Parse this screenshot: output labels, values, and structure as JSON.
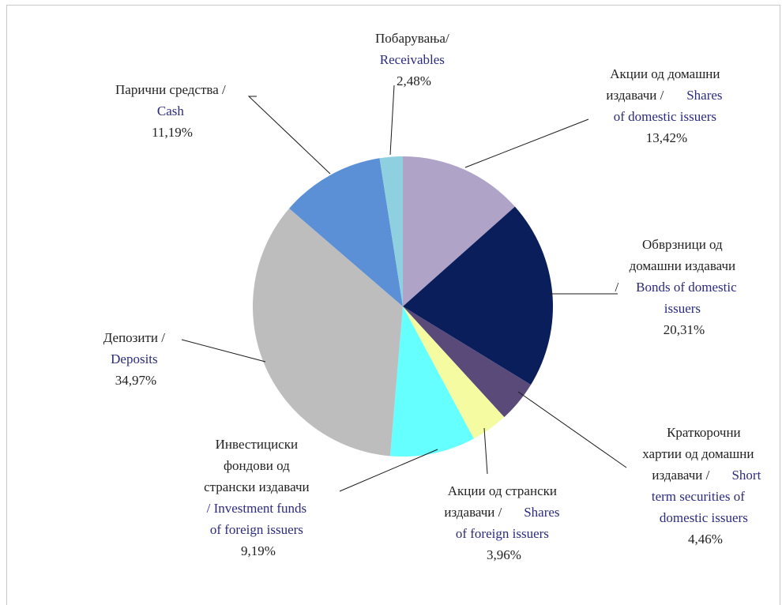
{
  "chart_data": {
    "type": "pie",
    "slices": [
      {
        "id": "domestic-shares",
        "cyr": [
          "Акции од домашни",
          "издавачи /"
        ],
        "eng": [
          "Shares",
          "of domestic issuers"
        ],
        "pct_label": "13,42%",
        "value": 13.42,
        "color": "#b0a3c8"
      },
      {
        "id": "domestic-bonds",
        "cyr": [
          "Обврзници од",
          "домашни издавачи",
          "/"
        ],
        "eng": [
          "Bonds of domestic",
          "issuers"
        ],
        "pct_label": "20,31%",
        "value": 20.31,
        "color": "#0b1e5c"
      },
      {
        "id": "short-term",
        "cyr": [
          "Краткорочни",
          "хартии од домашни",
          "издавачи /"
        ],
        "eng": [
          "Short",
          "term securities of",
          "domestic issuers"
        ],
        "pct_label": "4,46%",
        "value": 4.46,
        "color": "#5a4a7a"
      },
      {
        "id": "foreign-shares",
        "cyr": [
          "Акции од странски",
          "издавачи /"
        ],
        "eng": [
          "Shares",
          "of foreign issuers"
        ],
        "pct_label": "3,96%",
        "value": 3.96,
        "color": "#f4fba0"
      },
      {
        "id": "investment-funds",
        "cyr": [
          "Инвестициски",
          "фондови од",
          "странски издавачи"
        ],
        "eng": [
          "/ Investment funds",
          "of foreign issuers"
        ],
        "pct_label": "9,19%",
        "value": 9.19,
        "color": "#66ffff"
      },
      {
        "id": "deposits",
        "cyr": [
          "Депозити /"
        ],
        "eng": [
          "Deposits"
        ],
        "pct_label": "34,97%",
        "value": 34.97,
        "color": "#bdbdbd"
      },
      {
        "id": "cash",
        "cyr": [
          "Парични средства /"
        ],
        "eng": [
          "Cash"
        ],
        "pct_label": "11,19%",
        "value": 11.19,
        "color": "#5b8fd6"
      },
      {
        "id": "receivables",
        "cyr": [
          "Побарувања/"
        ],
        "eng": [
          "Receivables"
        ],
        "pct_label": "2,48%",
        "value": 2.48,
        "color": "#8fd0e0"
      }
    ],
    "start_angle": "12 o'clock",
    "direction": "clockwise",
    "legend": "none"
  }
}
